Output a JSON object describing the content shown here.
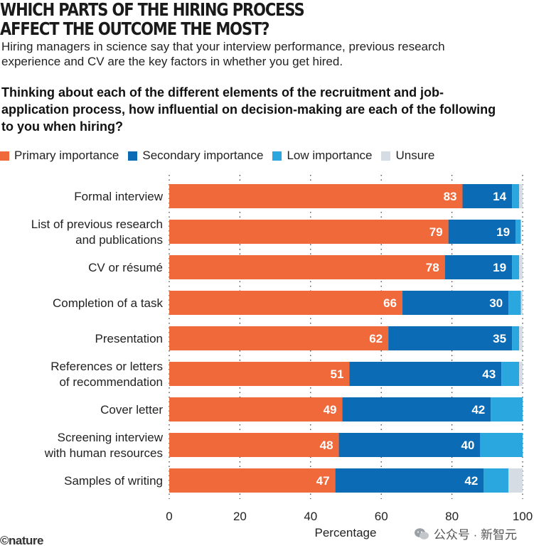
{
  "header": {
    "title_line1": "WHICH PARTS OF THE HIRING PROCESS",
    "title_line2": "AFFECT THE OUTCOME THE MOST?",
    "subtitle": "Hiring managers in science say that your interview performance, previous research experience and CV are the key factors in whether you get hired.",
    "question": "Thinking about each of the different elements of the recruitment and job-application process, how influential on decision-making are each of the following to you when hiring?"
  },
  "legend": [
    {
      "label": "Primary importance",
      "color": "#F0693A"
    },
    {
      "label": "Secondary importance",
      "color": "#0B6BB5"
    },
    {
      "label": "Low importance",
      "color": "#2AA7DE"
    },
    {
      "label": "Unsure",
      "color": "#D6DCE4"
    }
  ],
  "chart_data": {
    "type": "bar",
    "orientation": "horizontal",
    "stacked": true,
    "categories": [
      [
        "Formal interview"
      ],
      [
        "List of previous research",
        "and publications"
      ],
      [
        "CV or résumé"
      ],
      [
        "Completion of a task"
      ],
      [
        "Presentation"
      ],
      [
        "References or letters",
        "of recommendation"
      ],
      [
        "Cover letter"
      ],
      [
        "Screening interview",
        "with human resources"
      ],
      [
        "Samples of writing"
      ]
    ],
    "series": [
      {
        "name": "Primary importance",
        "color": "#F0693A",
        "values": [
          83,
          79,
          78,
          66,
          62,
          51,
          49,
          48,
          47
        ],
        "labeled": true
      },
      {
        "name": "Secondary importance",
        "color": "#0B6BB5",
        "values": [
          14,
          19,
          19,
          30,
          35,
          43,
          42,
          40,
          42
        ],
        "labeled": true
      },
      {
        "name": "Low importance",
        "color": "#2AA7DE",
        "values": [
          2,
          1.5,
          2,
          3.5,
          2,
          5,
          9,
          12,
          7
        ],
        "labeled": false
      },
      {
        "name": "Unsure",
        "color": "#D6DCE4",
        "values": [
          1,
          0,
          1,
          0.5,
          1,
          1,
          0,
          0,
          4
        ],
        "labeled": false
      }
    ],
    "xlabel": "Percentage",
    "xlim": [
      0,
      100
    ],
    "xticks": [
      0,
      20,
      40,
      60,
      80,
      100
    ],
    "grid": "vertical dotted"
  },
  "footer": {
    "logo": "©nature",
    "watermark": "公众号 · 新智元"
  }
}
